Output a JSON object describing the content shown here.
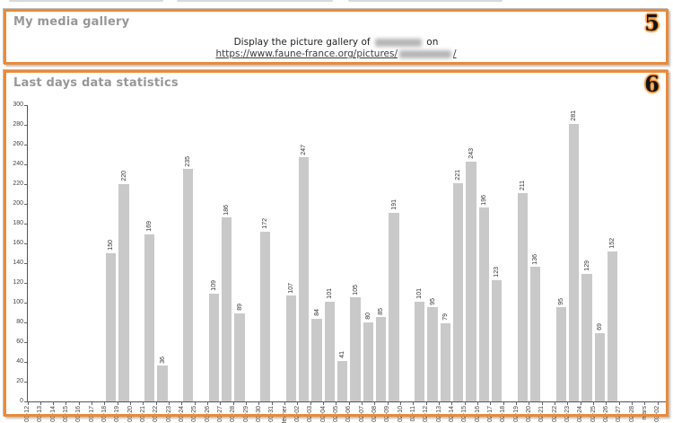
{
  "media_gallery": {
    "title": "My media gallery",
    "badge": "5",
    "line1_prefix": "Display the picture gallery of",
    "line1_suffix": "on",
    "link_prefix": "https://www.faune-france.org/pictures/",
    "link_suffix": "/"
  },
  "stats": {
    "title": "Last days data statistics",
    "badge": "6"
  },
  "colors": {
    "accent_orange": "#ea8a3a",
    "header_gray": "#979797",
    "bar_fill": "#c9c9c9"
  },
  "chart_data": {
    "type": "bar",
    "title": "Last days data statistics",
    "xlabel": "",
    "ylabel": "",
    "ylim": [
      0,
      300
    ],
    "ytick_step": 20,
    "grid": false,
    "legend": false,
    "x_label_rotation": -90,
    "value_labels_rotation": -90,
    "categories": [
      "01-12",
      "01-13",
      "01-14",
      "01-15",
      "01-16",
      "01-17",
      "01-18",
      "01-19",
      "01-20",
      "01-21",
      "01-22",
      "01-23",
      "01-24",
      "01-25",
      "01-26",
      "01-27",
      "01-28",
      "01-29",
      "01-30",
      "01-31",
      "février",
      "02-02",
      "02-03",
      "02-04",
      "02-05",
      "02-06",
      "02-07",
      "02-08",
      "02-09",
      "02-10",
      "02-11",
      "02-12",
      "02-13",
      "02-14",
      "02-15",
      "02-16",
      "02-17",
      "02-18",
      "02-19",
      "02-20",
      "02-21",
      "02-22",
      "02-23",
      "02-24",
      "02-25",
      "02-26",
      "02-27",
      "02-28",
      "mars",
      "03-02"
    ],
    "values": [
      0,
      0,
      0,
      0,
      0,
      0,
      150,
      220,
      0,
      169,
      36,
      0,
      235,
      0,
      109,
      186,
      89,
      0,
      172,
      0,
      107,
      247,
      84,
      101,
      41,
      105,
      80,
      85,
      191,
      0,
      101,
      95,
      79,
      221,
      243,
      196,
      123,
      0,
      211,
      136,
      0,
      95,
      281,
      129,
      69,
      152,
      0,
      0,
      0,
      0
    ]
  }
}
